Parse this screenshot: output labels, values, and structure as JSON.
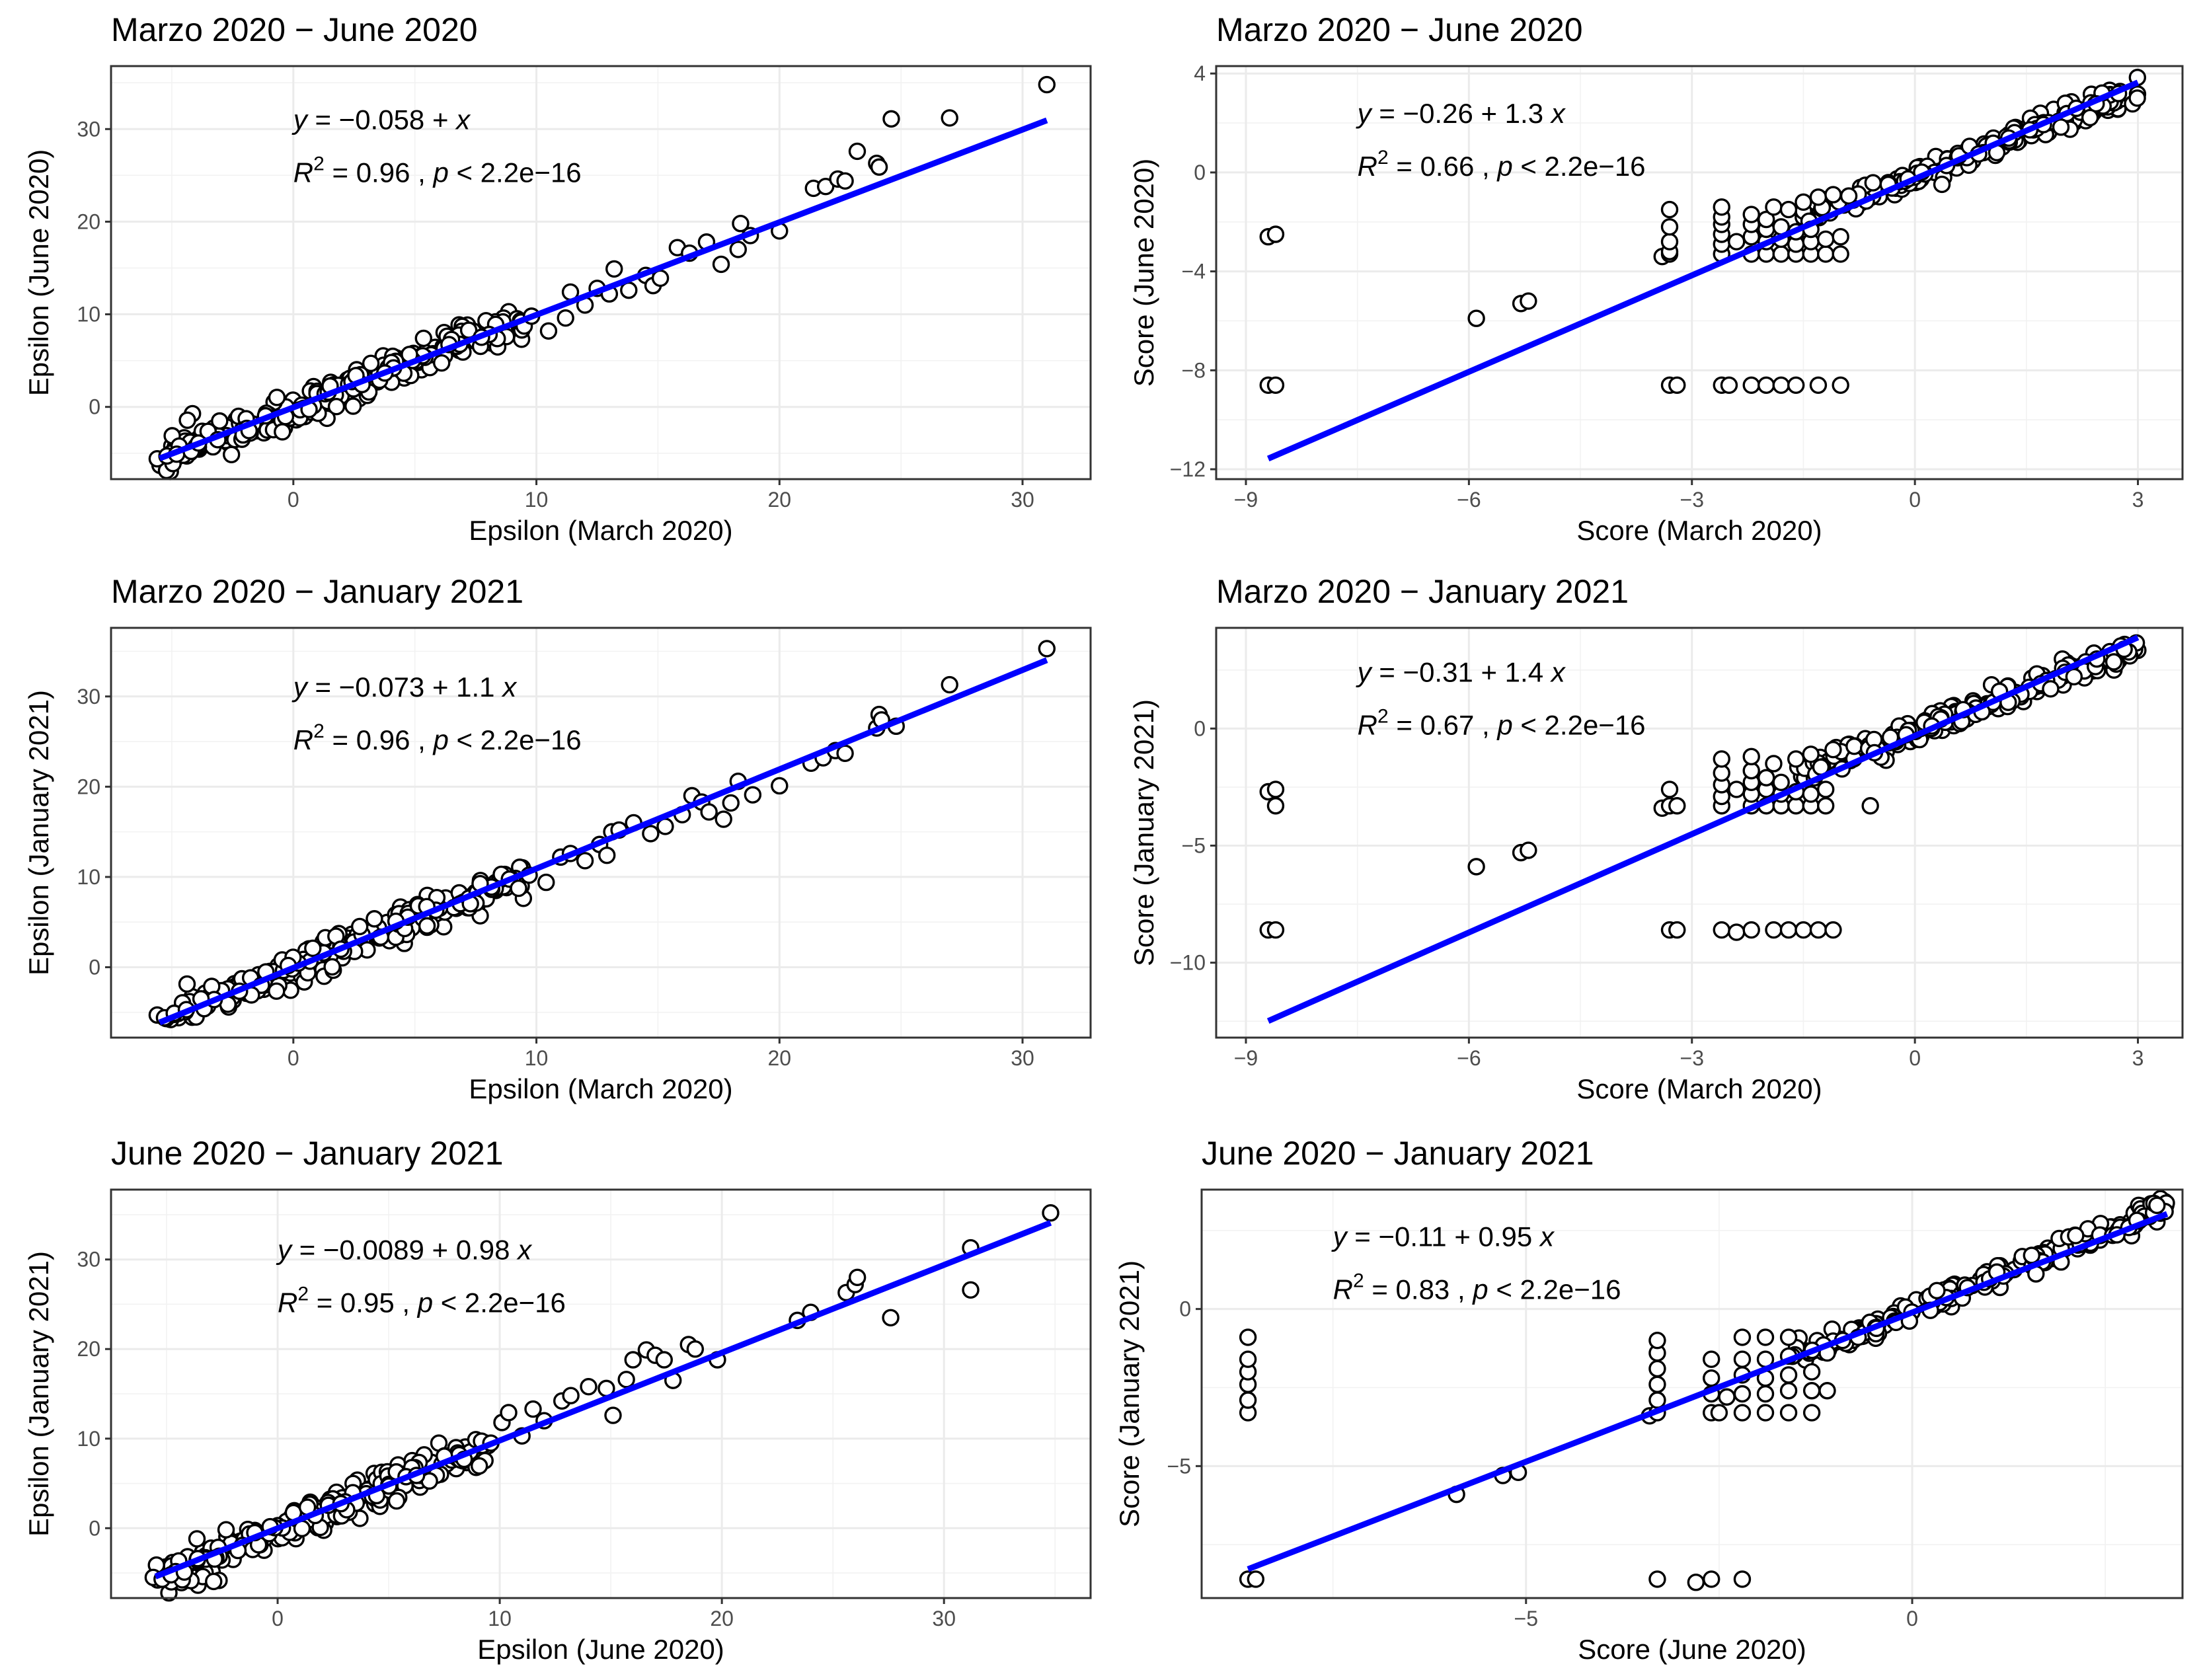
{
  "chart_data": [
    {
      "type": "scatter",
      "title": "Marzo 2020 − June 2020",
      "xlabel": "Epsilon (March 2020)",
      "ylabel": "Epsilon (June 2020)",
      "xlim": [
        -7.5,
        32.8
      ],
      "ylim": [
        -7.8,
        36.8
      ],
      "xticks": [
        0,
        10,
        20,
        30
      ],
      "yticks": [
        0,
        10,
        20,
        30
      ],
      "fit": {
        "intercept": -0.058,
        "slope": 1.0,
        "x_range": [
          -5.5,
          31
        ]
      },
      "equation": {
        "y": "y",
        "eq": " = −0.058 + ",
        "x": "x",
        "r": "R",
        "sup": "2",
        "rest": " = 0.96 , ",
        "p": "p",
        "ptext": " < 2.2e−16",
        "tx": 0.0,
        "ty": 30.0
      },
      "cloud": {
        "x_from": -5.5,
        "x_to": 9.5,
        "n": 260,
        "noise": 1.8,
        "slope": 1.0,
        "intercept": -0.1,
        "seed": 11
      },
      "points": [
        [
          -5.6,
          -5.6
        ],
        [
          -5.2,
          -5.3
        ],
        [
          -4.8,
          -5.1
        ],
        [
          -4.2,
          -4.8
        ],
        [
          -3.9,
          -3.9
        ],
        [
          9.8,
          9.8
        ],
        [
          10.5,
          8.2
        ],
        [
          11.2,
          9.6
        ],
        [
          11.4,
          12.4
        ],
        [
          12.0,
          11.0
        ],
        [
          12.5,
          12.8
        ],
        [
          13.0,
          12.2
        ],
        [
          13.2,
          14.9
        ],
        [
          13.8,
          12.6
        ],
        [
          14.5,
          14.2
        ],
        [
          14.8,
          13.1
        ],
        [
          15.1,
          13.9
        ],
        [
          15.8,
          17.2
        ],
        [
          16.3,
          16.6
        ],
        [
          17.0,
          17.8
        ],
        [
          17.6,
          15.4
        ],
        [
          18.3,
          17.0
        ],
        [
          18.4,
          19.8
        ],
        [
          18.8,
          18.5
        ],
        [
          20.0,
          19.0
        ],
        [
          21.4,
          23.6
        ],
        [
          21.9,
          23.8
        ],
        [
          22.4,
          24.6
        ],
        [
          22.7,
          24.4
        ],
        [
          23.2,
          27.6
        ],
        [
          24.0,
          26.3
        ],
        [
          24.1,
          25.9
        ],
        [
          24.6,
          31.1
        ],
        [
          27.0,
          31.2
        ],
        [
          31.0,
          34.8
        ]
      ]
    },
    {
      "type": "scatter",
      "title": "Marzo 2020 − June 2020",
      "xlabel": "Score (March 2020)",
      "ylabel": "Score (June 2020)",
      "xlim": [
        -9.4,
        3.6
      ],
      "ylim": [
        -12.4,
        4.3
      ],
      "xticks": [
        -9,
        -6,
        -3,
        0,
        3
      ],
      "yticks": [
        -12,
        -8,
        -4,
        0,
        4
      ],
      "fit": {
        "intercept": -0.26,
        "slope": 1.3,
        "x_range": [
          -8.7,
          3.0
        ]
      },
      "equation": {
        "y": "y",
        "eq": " = −0.26 + 1.3 ",
        "x": "x",
        "r": "R",
        "sup": "2",
        "rest": " = 0.66 , ",
        "p": "p",
        "ptext": " < 2.2e−16",
        "tx": -7.5,
        "ty": 2.0
      },
      "cloud": {
        "x_from": -1.6,
        "x_to": 3.0,
        "n": 230,
        "noise": 0.4,
        "slope": 1.15,
        "intercept": -0.1,
        "seed": 23
      },
      "points": [
        [
          -8.7,
          -2.6
        ],
        [
          -8.6,
          -2.5
        ],
        [
          -8.7,
          -8.6
        ],
        [
          -8.6,
          -8.6
        ],
        [
          -5.9,
          -5.9
        ],
        [
          -5.3,
          -5.3
        ],
        [
          -5.2,
          -5.2
        ],
        [
          -3.4,
          -3.4
        ],
        [
          -3.3,
          -3.3
        ],
        [
          -3.3,
          -3.2
        ],
        [
          -3.3,
          -2.8
        ],
        [
          -3.3,
          -2.2
        ],
        [
          -3.3,
          -1.5
        ],
        [
          -3.3,
          -8.6
        ],
        [
          -3.2,
          -8.6
        ],
        [
          -2.6,
          -8.6
        ],
        [
          -2.5,
          -8.6
        ],
        [
          -2.2,
          -8.6
        ],
        [
          -2.0,
          -8.6
        ],
        [
          -1.8,
          -8.6
        ],
        [
          -1.6,
          -8.6
        ],
        [
          -1.3,
          -8.6
        ],
        [
          -1.0,
          -8.6
        ],
        [
          -2.6,
          -3.3
        ],
        [
          -2.6,
          -2.9
        ],
        [
          -2.6,
          -2.5
        ],
        [
          -2.6,
          -2.1
        ],
        [
          -2.6,
          -1.8
        ],
        [
          -2.6,
          -1.4
        ],
        [
          -2.4,
          -2.8
        ],
        [
          -2.2,
          -3.3
        ],
        [
          -2.2,
          -2.6
        ],
        [
          -2.2,
          -2.1
        ],
        [
          -2.2,
          -1.7
        ],
        [
          -2.0,
          -3.3
        ],
        [
          -2.0,
          -2.8
        ],
        [
          -2.0,
          -2.3
        ],
        [
          -2.0,
          -1.9
        ],
        [
          -1.8,
          -3.3
        ],
        [
          -1.8,
          -2.7
        ],
        [
          -1.8,
          -2.2
        ],
        [
          -1.6,
          -3.3
        ],
        [
          -1.6,
          -2.9
        ],
        [
          -1.6,
          -2.4
        ],
        [
          -1.4,
          -3.3
        ],
        [
          -1.4,
          -2.8
        ],
        [
          -1.4,
          -2.3
        ],
        [
          -1.2,
          -3.3
        ],
        [
          -1.2,
          -2.7
        ],
        [
          -1.0,
          -3.3
        ],
        [
          -1.0,
          -2.6
        ],
        [
          -1.9,
          -1.4
        ],
        [
          -1.7,
          -1.5
        ],
        [
          -1.5,
          -1.2
        ],
        [
          -1.3,
          -1.0
        ],
        [
          -1.1,
          -0.9
        ]
      ]
    },
    {
      "type": "scatter",
      "title": "Marzo 2020 − January 2021",
      "xlabel": "Epsilon (March 2020)",
      "ylabel": "Epsilon (January 2021)",
      "xlim": [
        -7.5,
        32.8
      ],
      "ylim": [
        -7.8,
        37.6
      ],
      "xticks": [
        0,
        10,
        20,
        30
      ],
      "yticks": [
        0,
        10,
        20,
        30
      ],
      "fit": {
        "intercept": -0.073,
        "slope": 1.1,
        "x_range": [
          -5.5,
          31
        ]
      },
      "equation": {
        "y": "y",
        "eq": " = −0.073 + 1.1 ",
        "x": "x",
        "r": "R",
        "sup": "2",
        "rest": " = 0.96 , ",
        "p": "p",
        "ptext": " < 2.2e−16",
        "tx": 0.0,
        "ty": 30.0
      },
      "cloud": {
        "x_from": -5.5,
        "x_to": 9.5,
        "n": 260,
        "noise": 1.7,
        "slope": 1.05,
        "intercept": -0.1,
        "seed": 37
      },
      "points": [
        [
          -5.6,
          -5.3
        ],
        [
          -5.3,
          -5.6
        ],
        [
          -4.9,
          -5.1
        ],
        [
          -4.4,
          -4.7
        ],
        [
          -3.8,
          -3.5
        ],
        [
          9.7,
          10.2
        ],
        [
          10.4,
          9.4
        ],
        [
          11.0,
          12.2
        ],
        [
          11.4,
          12.6
        ],
        [
          12.0,
          11.8
        ],
        [
          12.6,
          13.6
        ],
        [
          12.9,
          12.4
        ],
        [
          13.1,
          15.0
        ],
        [
          13.4,
          15.2
        ],
        [
          14.0,
          16.0
        ],
        [
          14.7,
          14.8
        ],
        [
          15.3,
          15.6
        ],
        [
          16.0,
          16.9
        ],
        [
          16.4,
          19.0
        ],
        [
          16.8,
          18.3
        ],
        [
          17.1,
          17.2
        ],
        [
          17.7,
          16.4
        ],
        [
          18.0,
          18.2
        ],
        [
          18.3,
          20.6
        ],
        [
          18.9,
          19.1
        ],
        [
          20.0,
          20.1
        ],
        [
          21.3,
          22.6
        ],
        [
          21.8,
          23.2
        ],
        [
          22.3,
          24.0
        ],
        [
          22.7,
          23.7
        ],
        [
          24.0,
          26.5
        ],
        [
          24.1,
          28.0
        ],
        [
          24.2,
          27.4
        ],
        [
          24.8,
          26.7
        ],
        [
          27.0,
          31.3
        ],
        [
          31.0,
          35.3
        ]
      ]
    },
    {
      "type": "scatter",
      "title": "Marzo 2020 − January 2021",
      "xlabel": "Score (March 2020)",
      "ylabel": "Score (January 2021)",
      "xlim": [
        -9.4,
        3.6
      ],
      "ylim": [
        -13.2,
        4.3
      ],
      "xticks": [
        -9,
        -6,
        -3,
        0,
        3
      ],
      "yticks": [
        -10,
        -5,
        0
      ],
      "fit": {
        "intercept": -0.31,
        "slope": 1.4,
        "x_range": [
          -8.7,
          3.0
        ]
      },
      "equation": {
        "y": "y",
        "eq": " = −0.31 + 1.4 ",
        "x": "x",
        "r": "R",
        "sup": "2",
        "rest": " = 0.67 , ",
        "p": "p",
        "ptext": " < 2.2e−16",
        "tx": -7.5,
        "ty": 2.0
      },
      "cloud": {
        "x_from": -1.6,
        "x_to": 3.0,
        "n": 230,
        "noise": 0.45,
        "slope": 1.2,
        "intercept": -0.1,
        "seed": 51
      },
      "points": [
        [
          -8.7,
          -2.7
        ],
        [
          -8.6,
          -2.6
        ],
        [
          -8.6,
          -3.3
        ],
        [
          -8.7,
          -8.6
        ],
        [
          -8.6,
          -8.6
        ],
        [
          -5.9,
          -5.9
        ],
        [
          -5.3,
          -5.3
        ],
        [
          -5.2,
          -5.2
        ],
        [
          -3.4,
          -3.4
        ],
        [
          -3.3,
          -3.3
        ],
        [
          -3.3,
          -2.6
        ],
        [
          -3.2,
          -3.3
        ],
        [
          -3.3,
          -8.6
        ],
        [
          -3.2,
          -8.6
        ],
        [
          -2.6,
          -8.6
        ],
        [
          -2.4,
          -8.7
        ],
        [
          -2.2,
          -8.6
        ],
        [
          -1.9,
          -8.6
        ],
        [
          -1.7,
          -8.6
        ],
        [
          -1.5,
          -8.6
        ],
        [
          -1.3,
          -8.6
        ],
        [
          -1.1,
          -8.6
        ],
        [
          -2.6,
          -3.3
        ],
        [
          -2.6,
          -2.9
        ],
        [
          -2.6,
          -2.4
        ],
        [
          -2.6,
          -1.9
        ],
        [
          -2.6,
          -1.3
        ],
        [
          -2.4,
          -2.6
        ],
        [
          -2.2,
          -3.3
        ],
        [
          -2.2,
          -2.8
        ],
        [
          -2.2,
          -2.3
        ],
        [
          -2.2,
          -1.8
        ],
        [
          -2.2,
          -1.2
        ],
        [
          -2.0,
          -3.3
        ],
        [
          -2.0,
          -2.6
        ],
        [
          -2.0,
          -2.1
        ],
        [
          -1.8,
          -3.3
        ],
        [
          -1.8,
          -2.8
        ],
        [
          -1.8,
          -2.3
        ],
        [
          -1.6,
          -3.3
        ],
        [
          -1.6,
          -2.7
        ],
        [
          -1.4,
          -3.3
        ],
        [
          -1.4,
          -2.8
        ],
        [
          -1.2,
          -3.3
        ],
        [
          -1.2,
          -2.6
        ],
        [
          -0.6,
          -3.3
        ],
        [
          -1.9,
          -1.5
        ],
        [
          -1.6,
          -1.3
        ],
        [
          -1.4,
          -1.1
        ],
        [
          -1.1,
          -0.9
        ]
      ]
    },
    {
      "type": "scatter",
      "title": "June 2020 − January 2021",
      "xlabel": "Epsilon (June 2020)",
      "ylabel": "Epsilon (January 2021)",
      "xlim": [
        -7.5,
        36.6
      ],
      "ylim": [
        -7.8,
        37.8
      ],
      "xticks": [
        0,
        10,
        20,
        30
      ],
      "yticks": [
        0,
        10,
        20,
        30
      ],
      "fit": {
        "intercept": -0.0089,
        "slope": 0.98,
        "x_range": [
          -5.5,
          34.8
        ]
      },
      "equation": {
        "y": "y",
        "eq": " = −0.0089 + 0.98 ",
        "x": "x",
        "r": "R",
        "sup": "2",
        "rest": " = 0.95 , ",
        "p": "p",
        "ptext": " < 2.2e−16",
        "tx": 0.0,
        "ty": 30.0
      },
      "cloud": {
        "x_from": -5.5,
        "x_to": 9.5,
        "n": 260,
        "noise": 1.9,
        "slope": 1.0,
        "intercept": -0.1,
        "seed": 73
      },
      "points": [
        [
          -5.6,
          -5.5
        ],
        [
          -5.2,
          -5.7
        ],
        [
          -4.8,
          -5.2
        ],
        [
          -4.2,
          -4.9
        ],
        [
          -3.6,
          -3.4
        ],
        [
          9.6,
          9.5
        ],
        [
          10.1,
          11.8
        ],
        [
          10.4,
          12.9
        ],
        [
          11.0,
          10.3
        ],
        [
          11.5,
          13.3
        ],
        [
          12.0,
          12.0
        ],
        [
          12.8,
          14.2
        ],
        [
          13.2,
          14.8
        ],
        [
          14.0,
          15.8
        ],
        [
          14.8,
          15.6
        ],
        [
          15.1,
          12.6
        ],
        [
          15.7,
          16.6
        ],
        [
          16.0,
          18.8
        ],
        [
          16.6,
          19.9
        ],
        [
          17.0,
          19.3
        ],
        [
          17.4,
          18.8
        ],
        [
          17.8,
          16.5
        ],
        [
          18.5,
          20.5
        ],
        [
          18.8,
          20.0
        ],
        [
          19.8,
          18.8
        ],
        [
          23.4,
          23.2
        ],
        [
          24.0,
          24.1
        ],
        [
          25.6,
          26.3
        ],
        [
          26.0,
          27.2
        ],
        [
          26.1,
          28.0
        ],
        [
          27.6,
          23.5
        ],
        [
          31.2,
          26.6
        ],
        [
          31.2,
          31.3
        ],
        [
          34.8,
          35.2
        ]
      ]
    },
    {
      "type": "scatter",
      "title": "June 2020 − January 2021",
      "xlabel": "Score (June 2020)",
      "ylabel": "Score (January 2021)",
      "xlim": [
        -9.2,
        3.5
      ],
      "ylim": [
        -9.2,
        3.8
      ],
      "xticks": [
        -5,
        0
      ],
      "yticks": [
        -5,
        0
      ],
      "fit": {
        "intercept": -0.11,
        "slope": 0.95,
        "x_range": [
          -8.6,
          3.3
        ]
      },
      "equation": {
        "y": "y",
        "eq": " = −0.11 + 0.95 ",
        "x": "x",
        "r": "R",
        "sup": "2",
        "rest": " = 0.83 , ",
        "p": "p",
        "ptext": " < 2.2e−16",
        "tx": -7.5,
        "ty": 2.0
      },
      "cloud": {
        "x_from": -1.6,
        "x_to": 3.3,
        "n": 240,
        "noise": 0.35,
        "slope": 1.0,
        "intercept": -0.05,
        "seed": 97
      },
      "points": [
        [
          -8.6,
          -8.6
        ],
        [
          -8.5,
          -8.6
        ],
        [
          -8.6,
          -3.3
        ],
        [
          -8.6,
          -2.9
        ],
        [
          -8.6,
          -2.4
        ],
        [
          -8.6,
          -2.0
        ],
        [
          -8.6,
          -1.6
        ],
        [
          -8.6,
          -0.9
        ],
        [
          -5.9,
          -5.9
        ],
        [
          -5.3,
          -5.3
        ],
        [
          -5.1,
          -5.2
        ],
        [
          -3.4,
          -3.4
        ],
        [
          -3.3,
          -3.3
        ],
        [
          -3.3,
          -2.9
        ],
        [
          -3.3,
          -2.4
        ],
        [
          -3.3,
          -1.9
        ],
        [
          -3.3,
          -1.4
        ],
        [
          -3.3,
          -1.0
        ],
        [
          -3.3,
          -8.6
        ],
        [
          -2.8,
          -8.7
        ],
        [
          -2.6,
          -8.6
        ],
        [
          -2.2,
          -8.6
        ],
        [
          -2.6,
          -3.3
        ],
        [
          -2.6,
          -2.7
        ],
        [
          -2.6,
          -2.2
        ],
        [
          -2.6,
          -1.6
        ],
        [
          -2.5,
          -3.3
        ],
        [
          -2.4,
          -2.8
        ],
        [
          -2.2,
          -3.3
        ],
        [
          -2.2,
          -2.7
        ],
        [
          -2.2,
          -2.1
        ],
        [
          -2.2,
          -1.6
        ],
        [
          -2.2,
          -0.9
        ],
        [
          -1.9,
          -3.3
        ],
        [
          -1.9,
          -2.7
        ],
        [
          -1.9,
          -2.2
        ],
        [
          -1.9,
          -1.6
        ],
        [
          -1.9,
          -0.9
        ],
        [
          -1.6,
          -3.3
        ],
        [
          -1.6,
          -2.6
        ],
        [
          -1.6,
          -2.1
        ],
        [
          -1.6,
          -1.5
        ],
        [
          -1.6,
          -0.9
        ],
        [
          -1.3,
          -3.3
        ],
        [
          -1.3,
          -2.6
        ],
        [
          -1.3,
          -2.0
        ],
        [
          -1.1,
          -2.6
        ],
        [
          -1.1,
          -1.4
        ],
        [
          -0.9,
          -1.0
        ],
        [
          -0.7,
          -0.9
        ]
      ]
    }
  ]
}
